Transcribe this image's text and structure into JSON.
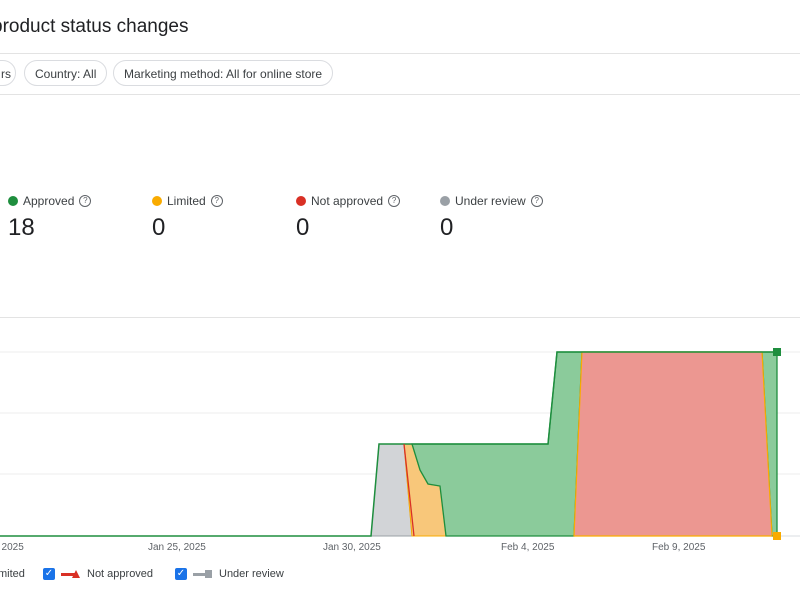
{
  "header": {
    "title": "product status changes"
  },
  "filters": [
    {
      "label": "rs"
    },
    {
      "label": "Country: All"
    },
    {
      "label": "Marketing method: All for online store"
    }
  ],
  "stats": [
    {
      "label": "Approved",
      "value": "18",
      "color": "#1e8e3e"
    },
    {
      "label": "Limited",
      "value": "0",
      "color": "#f9ab00"
    },
    {
      "label": "Not approved",
      "value": "0",
      "color": "#d93025"
    },
    {
      "label": "Under review",
      "value": "0",
      "color": "#9aa0a6"
    }
  ],
  "legend": [
    {
      "label": "mited",
      "color": "#f9ab00"
    },
    {
      "label": "Not approved",
      "color": "#d93025"
    },
    {
      "label": "Under review",
      "color": "#9aa0a6"
    }
  ],
  "chart_data": {
    "type": "area",
    "x_ticks": [
      ", 2025",
      "Jan 25, 2025",
      "Jan 30, 2025",
      "Feb 4, 2025",
      "Feb 9, 2025"
    ],
    "series": [
      {
        "name": "Approved",
        "color": "#1e8e3e",
        "fill": "#8bcb9b"
      },
      {
        "name": "Limited",
        "color": "#f9ab00",
        "fill": "#f8c77a"
      },
      {
        "name": "Not approved",
        "color": "#d93025",
        "fill": "#ec9791"
      },
      {
        "name": "Under review",
        "color": "#9aa0a6",
        "fill": "#d2d4d7"
      }
    ],
    "grid": true
  }
}
